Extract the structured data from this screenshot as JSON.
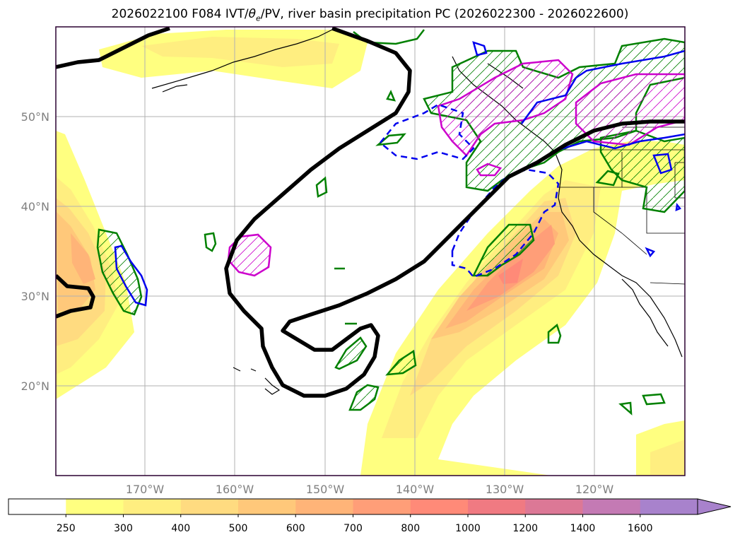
{
  "title": {
    "prefix": "2026022100 F084 IVT/",
    "theta": "θ",
    "sub": "e",
    "suffix": "/PV, river basin precipitation PC (2026022300 - 2026022600)"
  },
  "map": {
    "lon_range": [
      -180,
      -110
    ],
    "lat_range": [
      10,
      60
    ],
    "lat_ticks": [
      "20°N",
      "30°N",
      "40°N",
      "50°N"
    ],
    "lon_ticks": [
      "170°W",
      "160°W",
      "150°W",
      "140°W",
      "130°W",
      "120°W"
    ],
    "grid": true
  },
  "colorbar": {
    "labels": [
      "250",
      "300",
      "400",
      "500",
      "600",
      "700",
      "800",
      "1000",
      "1200",
      "1400",
      "1600"
    ],
    "colors": [
      "#ffff80",
      "#ffee80",
      "#ffdb80",
      "#ffc87a",
      "#ffb478",
      "#ff9e78",
      "#ff8a78",
      "#f07a82",
      "#dc7896",
      "#c47ab4",
      "#a882cc"
    ],
    "extend": "max"
  },
  "colors": {
    "ivt_contour": "#000000",
    "green_contour": "#008000",
    "magenta_contour": "#cc00cc",
    "blue_contour": "#0000ee",
    "grid": "#b0b0b0",
    "frame": "#2a0030"
  }
}
